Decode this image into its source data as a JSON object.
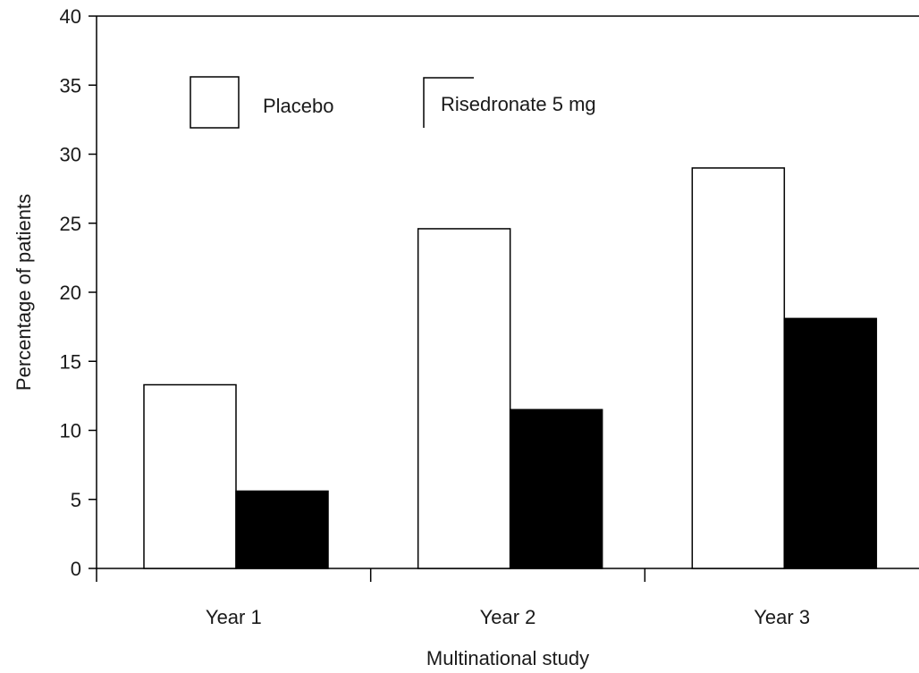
{
  "chart_data": {
    "type": "bar",
    "title": "",
    "xlabel": "Multinational study",
    "ylabel": "Percentage of patients",
    "ylim": [
      0,
      40
    ],
    "yticks": [
      0,
      5,
      10,
      15,
      20,
      25,
      30,
      35,
      40
    ],
    "categories": [
      "Year 1",
      "Year 2",
      "Year 3"
    ],
    "series": [
      {
        "name": "Placebo",
        "values": [
          13.3,
          24.6,
          29.0
        ],
        "color": "#ffffff",
        "stroke": "#000000"
      },
      {
        "name": "Risedronate 5 mg",
        "values": [
          5.6,
          11.5,
          18.1
        ],
        "color": "#000000",
        "stroke": "#000000"
      }
    ],
    "grid": false,
    "legend_position": "top-left"
  }
}
